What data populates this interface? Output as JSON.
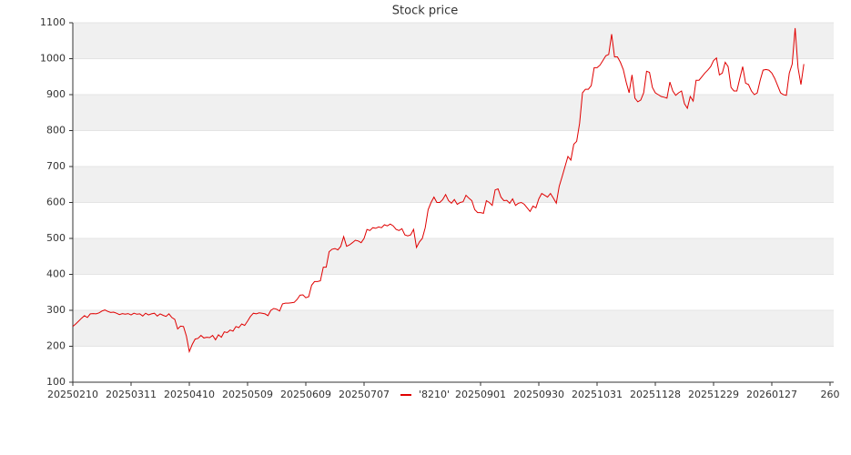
{
  "chart_data": {
    "type": "line",
    "title": "Stock price",
    "ylim": [
      100,
      1100
    ],
    "yticks": [
      100,
      200,
      300,
      400,
      500,
      600,
      700,
      800,
      900,
      1000,
      1100
    ],
    "xlim": [
      0,
      261.25
    ],
    "xticks": [
      {
        "value": 0,
        "label": "20250210"
      },
      {
        "value": 20,
        "label": "20250311"
      },
      {
        "value": 40,
        "label": "20250410"
      },
      {
        "value": 60,
        "label": "20250509"
      },
      {
        "value": 80,
        "label": "20250609"
      },
      {
        "value": 100,
        "label": "20250707"
      },
      {
        "value": 140,
        "label": "20250901"
      },
      {
        "value": 160,
        "label": "20250930"
      },
      {
        "value": 180,
        "label": "20251031"
      },
      {
        "value": 200,
        "label": "20251128"
      },
      {
        "value": 220,
        "label": "20251229"
      },
      {
        "value": 240,
        "label": "20260127"
      },
      {
        "value": 260,
        "label": "260"
      }
    ],
    "grid": true,
    "legend": "bottom",
    "series": [
      {
        "name": "'8210'",
        "color": "#e00000",
        "values": [
          255,
          262,
          270,
          278,
          285,
          280,
          290,
          291,
          290,
          293,
          298,
          301,
          297,
          294,
          295,
          292,
          288,
          291,
          289,
          291,
          287,
          292,
          289,
          290,
          284,
          292,
          287,
          290,
          292,
          284,
          290,
          286,
          283,
          290,
          280,
          275,
          248,
          256,
          255,
          228,
          185,
          205,
          220,
          222,
          230,
          223,
          225,
          224,
          230,
          218,
          232,
          225,
          240,
          238,
          245,
          242,
          255,
          252,
          262,
          258,
          270,
          283,
          292,
          290,
          293,
          292,
          290,
          285,
          300,
          305,
          303,
          298,
          318,
          320,
          320,
          321,
          322,
          330,
          342,
          343,
          335,
          338,
          370,
          380,
          380,
          382,
          420,
          420,
          463,
          470,
          472,
          468,
          478,
          505,
          478,
          482,
          488,
          495,
          493,
          488,
          500,
          525,
          522,
          530,
          528,
          532,
          530,
          538,
          535,
          540,
          535,
          525,
          522,
          527,
          510,
          507,
          510,
          525,
          475,
          490,
          500,
          530,
          580,
          600,
          615,
          600,
          600,
          608,
          622,
          605,
          598,
          608,
          595,
          600,
          602,
          620,
          612,
          605,
          580,
          572,
          572,
          570,
          605,
          600,
          592,
          635,
          638,
          615,
          605,
          606,
          598,
          610,
          592,
          598,
          600,
          595,
          585,
          575,
          590,
          585,
          610,
          625,
          620,
          615,
          625,
          612,
          598,
          645,
          672,
          700,
          728,
          718,
          762,
          770,
          820,
          905,
          915,
          915,
          925,
          975,
          975,
          982,
          995,
          1008,
          1012,
          1068,
          1005,
          1005,
          990,
          970,
          935,
          905,
          955,
          890,
          880,
          885,
          905,
          965,
          962,
          920,
          905,
          900,
          895,
          893,
          890,
          935,
          910,
          898,
          905,
          910,
          875,
          862,
          895,
          882,
          940,
          940,
          950,
          960,
          968,
          978,
          995,
          1002,
          955,
          960,
          990,
          978,
          920,
          910,
          910,
          945,
          978,
          932,
          928,
          910,
          900,
          905,
          940,
          968,
          970,
          968,
          960,
          945,
          925,
          905,
          900,
          898,
          960,
          985,
          1085,
          975,
          928,
          985
        ]
      }
    ]
  }
}
